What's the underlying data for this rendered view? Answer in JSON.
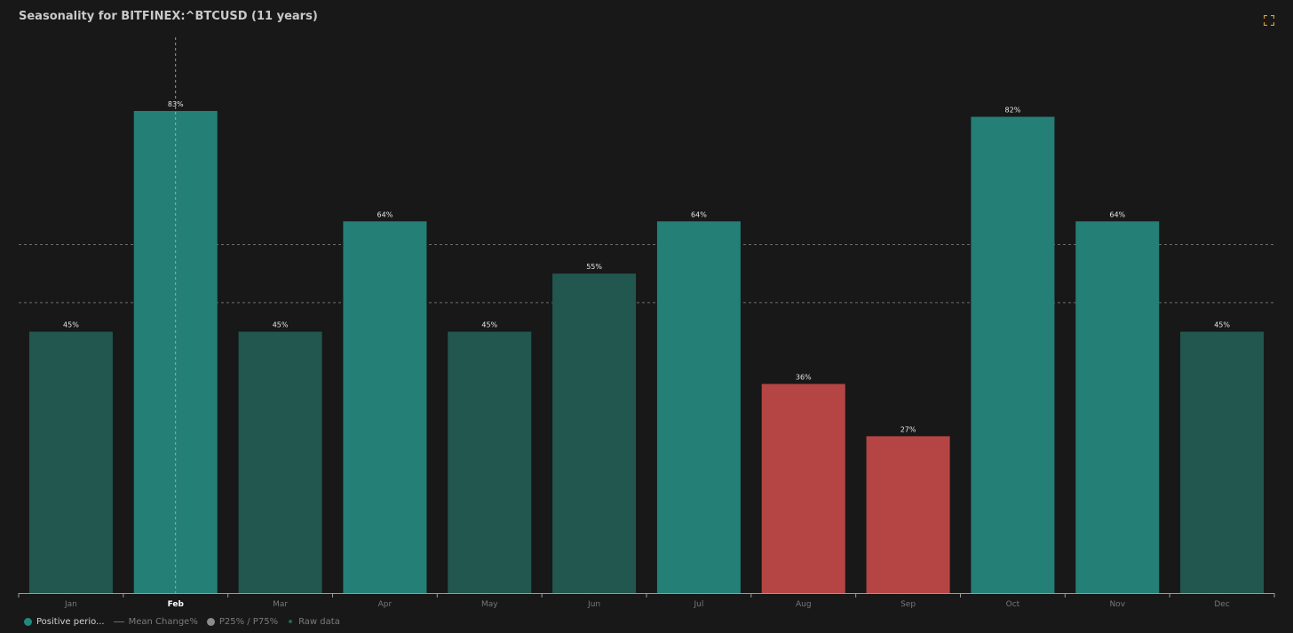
{
  "title": "Seasonality for BITFINEX:^BTCUSD (11 years)",
  "colors": {
    "background": "#181818",
    "bar_strong": "#247f76",
    "bar_weak": "#22574f",
    "bar_negative": "#b54545",
    "axis": "#9a9a9a",
    "grid": "#6c6c6c",
    "label": "#e6e6e6",
    "tick": "#777777",
    "tick_active": "#ffffff",
    "expand": "#e0a030"
  },
  "legend": {
    "positive": "Positive perio...",
    "mean": "Mean Change%",
    "percentiles": "P25% / P75%",
    "raw": "Raw data",
    "positive_color": "#1f8a7b",
    "percentiles_color": "#8a8a8a",
    "raw_color": "#1f6a4a"
  },
  "icons": {
    "expand": "expand-icon"
  },
  "chart_data": {
    "type": "bar",
    "categories": [
      "Jan",
      "Feb",
      "Mar",
      "Apr",
      "May",
      "Jun",
      "Jul",
      "Aug",
      "Sep",
      "Oct",
      "Nov",
      "Dec"
    ],
    "values": [
      45,
      83,
      45,
      64,
      45,
      55,
      64,
      36,
      27,
      82,
      64,
      45
    ],
    "value_suffix": "%",
    "bar_colors": [
      "#22574f",
      "#247f76",
      "#22574f",
      "#247f76",
      "#22574f",
      "#22574f",
      "#247f76",
      "#b54545",
      "#b54545",
      "#247f76",
      "#247f76",
      "#22574f"
    ],
    "highlighted_category": "Feb",
    "reference_lines": [
      50,
      60
    ],
    "ylim": [
      0,
      83
    ],
    "xlabel": "",
    "ylabel": "",
    "grid": false
  }
}
